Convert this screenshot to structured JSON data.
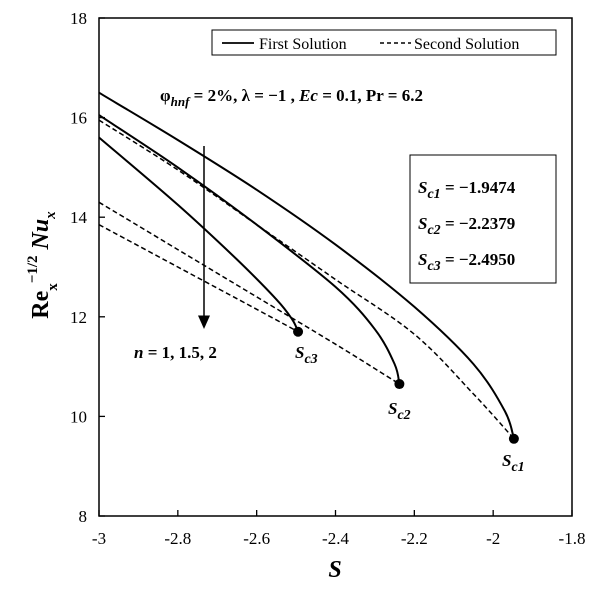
{
  "chart_data": {
    "type": "line",
    "title": "",
    "xlabel": "S",
    "ylabel": "Re_x^{-1/2} Nu_x",
    "xlim": [
      -3,
      -1.8
    ],
    "ylim": [
      8,
      18
    ],
    "x_ticks": [
      -3,
      -2.8,
      -2.6,
      -2.4,
      -2.2,
      -2,
      -1.8
    ],
    "y_ticks": [
      8,
      10,
      12,
      14,
      16,
      18
    ],
    "grid": false,
    "legend": {
      "position": "top-right",
      "entries": [
        {
          "label": "First Solution",
          "style": "solid"
        },
        {
          "label": "Second Solution",
          "style": "dashed"
        }
      ]
    },
    "parameters_text": "φhnf = 2%, λ = −1 , Ec = 0.1, Pr = 6.2",
    "arrow_label": "n = 1, 1.5, 2",
    "critical_box": [
      {
        "label": "Sc1",
        "value": "−1.9474"
      },
      {
        "label": "Sc2",
        "value": "−2.2379"
      },
      {
        "label": "Sc3",
        "value": "−2.4950"
      }
    ],
    "series": [
      {
        "n": 1,
        "style": "solid",
        "points": [
          [
            -3,
            16.5
          ],
          [
            -2.8,
            15.55
          ],
          [
            -2.6,
            14.55
          ],
          [
            -2.4,
            13.45
          ],
          [
            -2.2,
            12.2
          ],
          [
            -2.05,
            11.05
          ],
          [
            -1.97,
            10.1
          ],
          [
            -1.9474,
            9.55
          ]
        ]
      },
      {
        "n": 1,
        "style": "dashed",
        "points": [
          [
            -3,
            15.95
          ],
          [
            -2.8,
            14.95
          ],
          [
            -2.6,
            13.85
          ],
          [
            -2.4,
            12.75
          ],
          [
            -2.2,
            11.65
          ],
          [
            -2.05,
            10.45
          ],
          [
            -1.9474,
            9.55
          ]
        ]
      },
      {
        "n": 1.5,
        "style": "solid",
        "points": [
          [
            -3,
            16.05
          ],
          [
            -2.8,
            15.0
          ],
          [
            -2.6,
            13.85
          ],
          [
            -2.4,
            12.6
          ],
          [
            -2.3,
            11.75
          ],
          [
            -2.25,
            11.05
          ],
          [
            -2.2379,
            10.65
          ]
        ]
      },
      {
        "n": 1.5,
        "style": "dashed",
        "points": [
          [
            -3,
            14.3
          ],
          [
            -2.8,
            13.35
          ],
          [
            -2.6,
            12.4
          ],
          [
            -2.4,
            11.45
          ],
          [
            -2.2379,
            10.65
          ]
        ]
      },
      {
        "n": 2,
        "style": "solid",
        "points": [
          [
            -3,
            15.6
          ],
          [
            -2.8,
            14.25
          ],
          [
            -2.65,
            13.15
          ],
          [
            -2.55,
            12.35
          ],
          [
            -2.51,
            11.95
          ],
          [
            -2.495,
            11.7
          ]
        ]
      },
      {
        "n": 2,
        "style": "dashed",
        "points": [
          [
            -3,
            13.85
          ],
          [
            -2.8,
            13.0
          ],
          [
            -2.6,
            12.15
          ],
          [
            -2.495,
            11.7
          ]
        ]
      }
    ],
    "critical_points": [
      {
        "label": "Sc1",
        "x": -1.9474,
        "y": 9.55
      },
      {
        "label": "Sc2",
        "x": -2.2379,
        "y": 10.65
      },
      {
        "label": "Sc3",
        "x": -2.495,
        "y": 11.7
      }
    ]
  }
}
